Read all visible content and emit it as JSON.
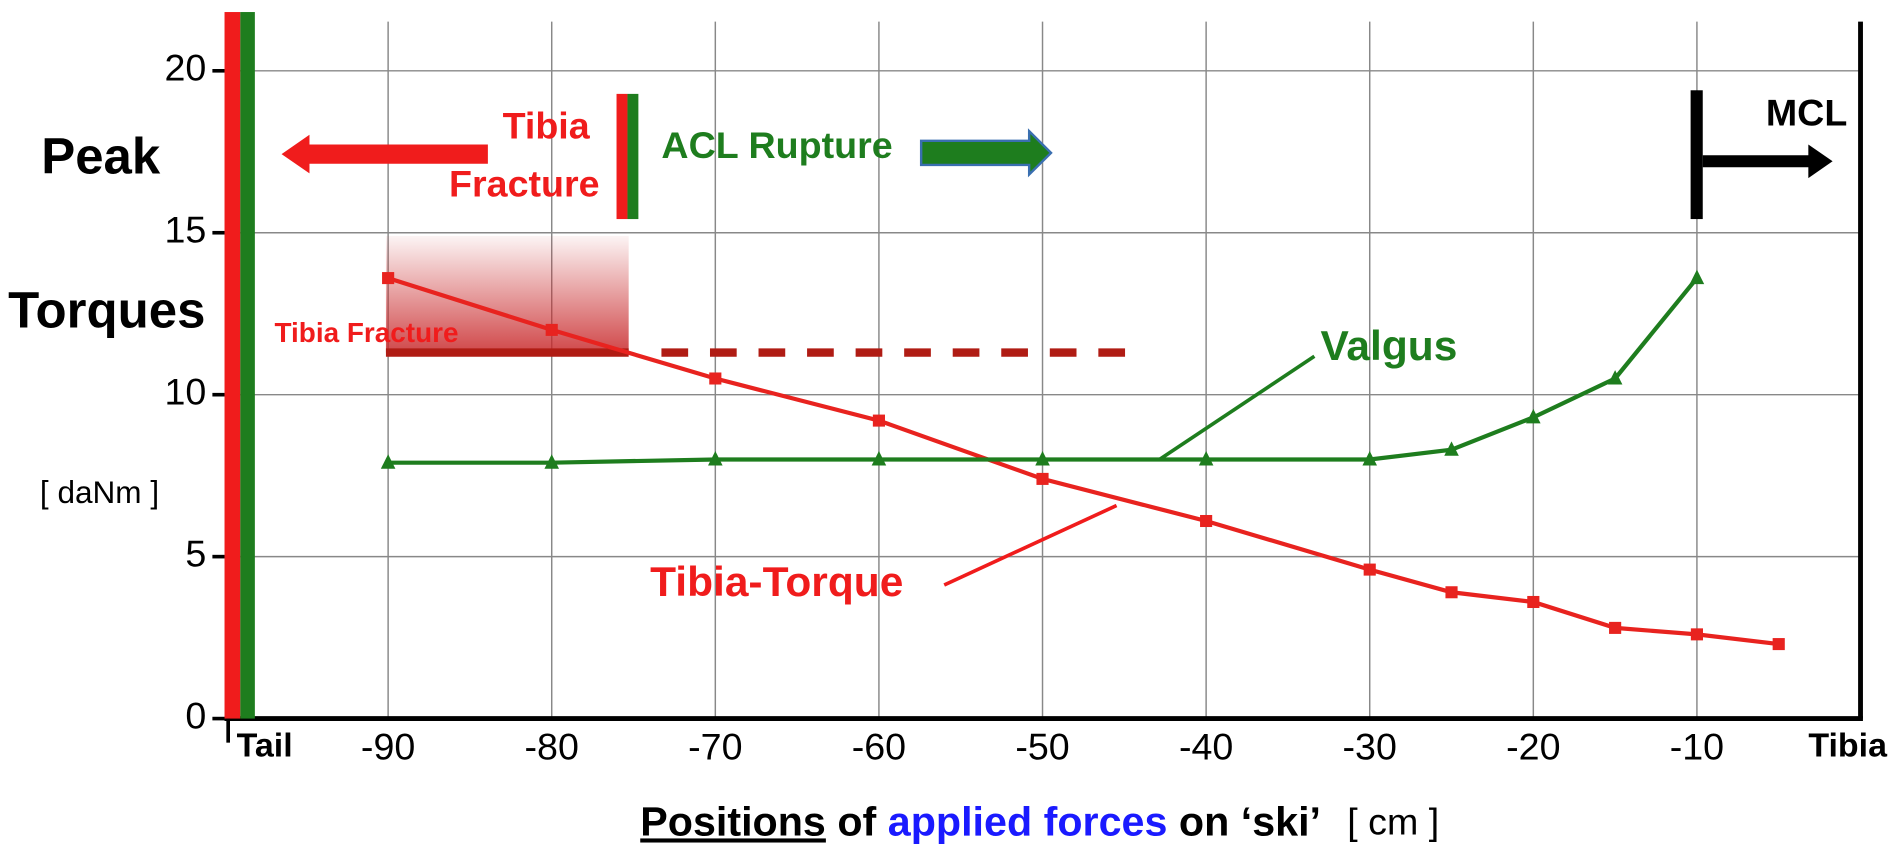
{
  "chart_data": {
    "type": "line",
    "ylabel": [
      "Peak",
      "Torques"
    ],
    "yunit": "[ daNm ]",
    "xlabel": [
      "Positions",
      "of",
      "applied forces",
      "on ‘ski’"
    ],
    "xunit": "[ cm ]",
    "x_end_labels": [
      "Tail",
      "Tibia"
    ],
    "xlim": [
      -100,
      0
    ],
    "ylim": [
      0,
      22
    ],
    "xticks": [
      -90,
      -80,
      -70,
      -60,
      -50,
      -40,
      -30,
      -20,
      -10
    ],
    "yticks": [
      0,
      5,
      10,
      15,
      20
    ],
    "grid": true,
    "series": [
      {
        "name": "Tibia-Torque",
        "color": "#e8231f",
        "x": [
          -90,
          -80,
          -70,
          -60,
          -50,
          -40,
          -30,
          -25,
          -20,
          -15,
          -10,
          -5
        ],
        "values": [
          13.6,
          12.0,
          10.5,
          9.2,
          7.4,
          6.1,
          4.6,
          3.9,
          3.6,
          2.8,
          2.6,
          2.3
        ]
      },
      {
        "name": "Valgus",
        "color": "#1e7d1e",
        "x": [
          -90,
          -80,
          -70,
          -60,
          -50,
          -40,
          -30,
          -25,
          -20,
          -15,
          -10
        ],
        "values": [
          7.9,
          7.9,
          8.0,
          8.0,
          8.0,
          8.0,
          8.0,
          8.3,
          9.3,
          10.5,
          13.6
        ]
      }
    ],
    "threshold": {
      "label": "Tibia Fracture",
      "value": 11.3,
      "color": "#b01c14"
    },
    "annotations": {
      "tibia_fracture": [
        "Tibia",
        "Fracture"
      ],
      "acl": "ACL Rupture",
      "mcl": "MCL"
    }
  }
}
